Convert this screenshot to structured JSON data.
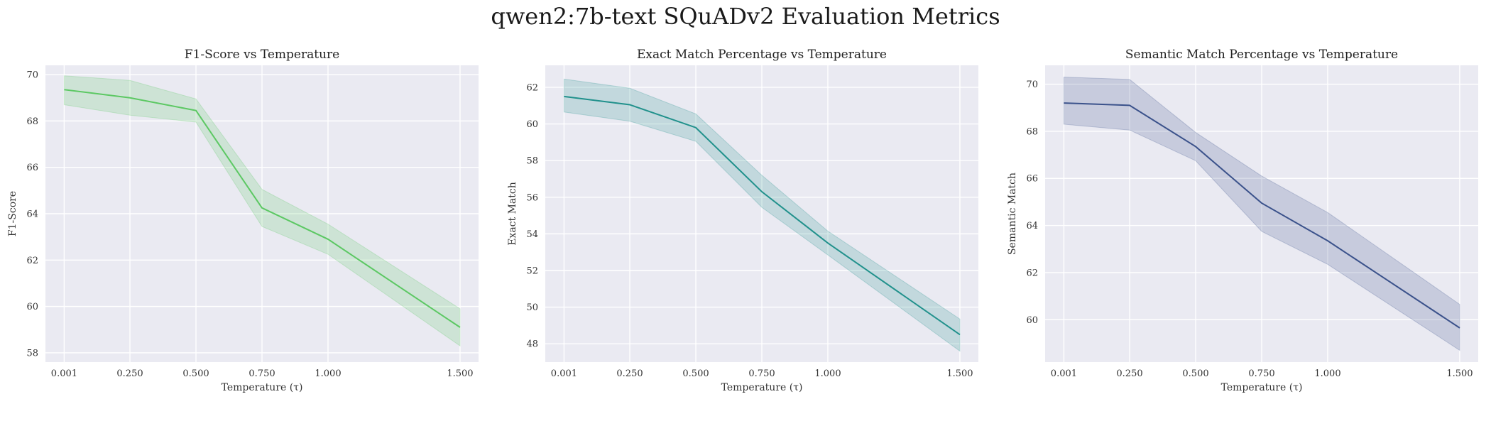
{
  "figure": {
    "title": "qwen2:7b-text SQuADv2 Evaluation Metrics"
  },
  "chart_data": [
    {
      "type": "line",
      "title": "F1-Score vs Temperature",
      "xlabel": "Temperature (τ)",
      "ylabel": "F1-Score",
      "x": [
        0.001,
        0.25,
        0.5,
        0.75,
        1.0,
        1.5
      ],
      "x_tick_labels": [
        "0.001",
        "0.250",
        "0.500",
        "0.750",
        "1.000",
        "1.500"
      ],
      "y_ticks": [
        58,
        60,
        62,
        64,
        66,
        68,
        70
      ],
      "ylim": [
        57.6,
        70.4
      ],
      "xlim": [
        -0.07,
        1.57
      ],
      "series": [
        {
          "values": [
            69.35,
            69.0,
            68.45,
            64.25,
            62.9,
            59.1
          ],
          "ci_low": [
            68.7,
            68.25,
            67.95,
            63.45,
            62.25,
            58.3
          ],
          "ci_high": [
            69.95,
            69.75,
            68.95,
            65.05,
            63.55,
            59.9
          ],
          "color": "#5cc863"
        }
      ],
      "grid": true,
      "background": "#eaeaf2"
    },
    {
      "type": "line",
      "title": "Exact Match Percentage vs Temperature",
      "xlabel": "Temperature (τ)",
      "ylabel": "Exact Match",
      "x": [
        0.001,
        0.25,
        0.5,
        0.75,
        1.0,
        1.5
      ],
      "x_tick_labels": [
        "0.001",
        "0.250",
        "0.500",
        "0.750",
        "1.000",
        "1.500"
      ],
      "y_ticks": [
        48,
        50,
        52,
        54,
        56,
        58,
        60,
        62
      ],
      "ylim": [
        47.0,
        63.2
      ],
      "xlim": [
        -0.07,
        1.57
      ],
      "series": [
        {
          "values": [
            61.5,
            61.05,
            59.8,
            56.3,
            53.5,
            48.5
          ],
          "ci_low": [
            60.65,
            60.15,
            59.05,
            55.45,
            52.85,
            47.6
          ],
          "ci_high": [
            62.45,
            61.95,
            60.55,
            57.2,
            54.15,
            49.35
          ],
          "color": "#21918c"
        }
      ],
      "grid": true,
      "background": "#eaeaf2"
    },
    {
      "type": "line",
      "title": "Semantic Match Percentage vs Temperature",
      "xlabel": "Temperature (τ)",
      "ylabel": "Semantic Match",
      "x": [
        0.001,
        0.25,
        0.5,
        0.75,
        1.0,
        1.5
      ],
      "x_tick_labels": [
        "0.001",
        "0.250",
        "0.500",
        "0.750",
        "1.000",
        "1.500"
      ],
      "y_ticks": [
        60,
        62,
        64,
        66,
        68,
        70
      ],
      "ylim": [
        58.2,
        70.8
      ],
      "xlim": [
        -0.07,
        1.57
      ],
      "series": [
        {
          "values": [
            69.2,
            69.1,
            67.35,
            64.95,
            63.35,
            59.65
          ],
          "ci_low": [
            68.3,
            68.05,
            66.75,
            63.75,
            62.35,
            58.7
          ],
          "ci_high": [
            70.3,
            70.2,
            67.95,
            66.1,
            64.55,
            60.65
          ],
          "color": "#3b528b"
        }
      ],
      "grid": true,
      "background": "#eaeaf2"
    }
  ]
}
